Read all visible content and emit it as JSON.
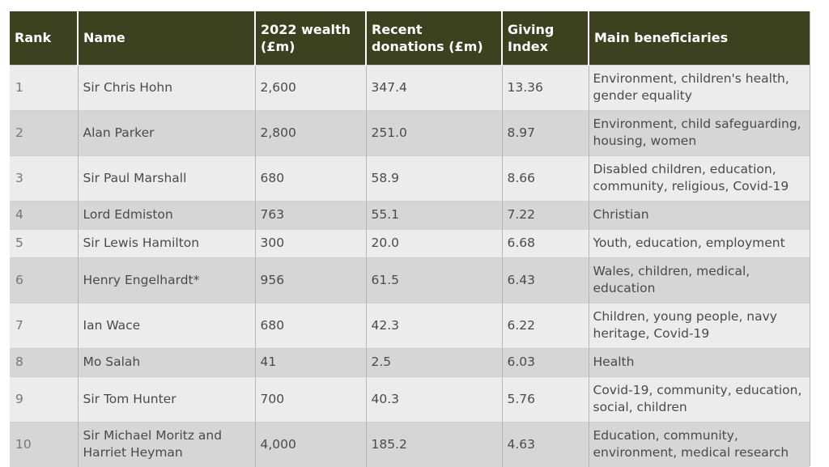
{
  "table": {
    "headers": {
      "rank": "Rank",
      "name": "Name",
      "wealth": "2022 wealth (£m)",
      "donations": "Recent donations (£m)",
      "giving_index": "Giving Index",
      "beneficiaries": "Main beneficiaries"
    },
    "rows": [
      {
        "rank": "1",
        "name": "Sir Chris Hohn",
        "wealth": "2,600",
        "donations": "347.4",
        "giving_index": "13.36",
        "beneficiaries": "Environment, children's health, gender equality"
      },
      {
        "rank": "2",
        "name": "Alan Parker",
        "wealth": "2,800",
        "donations": "251.0",
        "giving_index": "8.97",
        "beneficiaries": "Environment, child safeguarding, housing, women"
      },
      {
        "rank": "3",
        "name": "Sir Paul Marshall",
        "wealth": "680",
        "donations": "58.9",
        "giving_index": "8.66",
        "beneficiaries": "Disabled children, education, community, religious, Covid-19"
      },
      {
        "rank": "4",
        "name": "Lord Edmiston",
        "wealth": "763",
        "donations": "55.1",
        "giving_index": "7.22",
        "beneficiaries": "Christian"
      },
      {
        "rank": "5",
        "name": "Sir Lewis Hamilton",
        "wealth": "300",
        "donations": "20.0",
        "giving_index": "6.68",
        "beneficiaries": "Youth, education, employment"
      },
      {
        "rank": "6",
        "name": "Henry Engelhardt*",
        "wealth": "956",
        "donations": "61.5",
        "giving_index": "6.43",
        "beneficiaries": "Wales, children, medical, education"
      },
      {
        "rank": "7",
        "name": "Ian Wace",
        "wealth": "680",
        "donations": "42.3",
        "giving_index": "6.22",
        "beneficiaries": "Children, young people, navy heritage, Covid-19"
      },
      {
        "rank": "8",
        "name": "Mo Salah",
        "wealth": "41",
        "donations": "2.5",
        "giving_index": "6.03",
        "beneficiaries": "Health"
      },
      {
        "rank": "9",
        "name": "Sir Tom Hunter",
        "wealth": "700",
        "donations": "40.3",
        "giving_index": "5.76",
        "beneficiaries": "Covid-19, community, education, social, children"
      },
      {
        "rank": "10",
        "name": "Sir Michael Moritz and Harriet Heyman",
        "wealth": "4,000",
        "donations": "185.2",
        "giving_index": "4.63",
        "beneficiaries": "Education, community, environment, medical research"
      }
    ]
  }
}
